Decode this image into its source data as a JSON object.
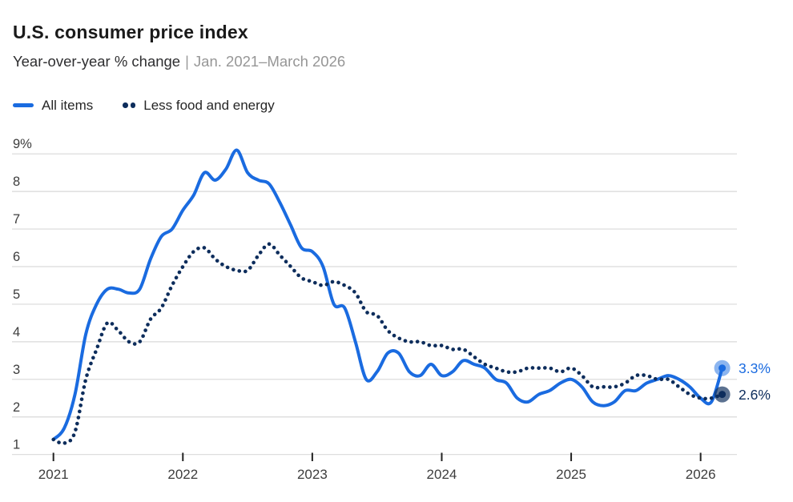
{
  "header": {
    "title": "U.S. consumer price index",
    "subtitle_measure": "Year-over-year % change",
    "subtitle_divider": "|",
    "subtitle_range": "Jan. 2021–March 2026"
  },
  "legend": [
    {
      "label": "All items",
      "style": "solid-line",
      "color": "#1a6be0"
    },
    {
      "label": "Less food and energy",
      "style": "dotted-line",
      "color": "#0d2d5c"
    }
  ],
  "colors": {
    "accent_blue": "#1a6be0",
    "navy": "#0d2d5c",
    "gridline": "#d9d9d9",
    "axis_text": "#3d3d3d",
    "tick": "#222222",
    "title_text": "#1a1a1a",
    "subtitle_text": "#2e2e30",
    "subtitle_muted": "#969696"
  },
  "chart_data": {
    "type": "line",
    "title": "U.S. consumer price index",
    "ylabel": "Year-over-year % change",
    "x_start": "2021-01",
    "x_end": "2026-03",
    "x_interval": "monthly",
    "x_tick_labels": [
      "2021",
      "2022",
      "2023",
      "2024",
      "2025",
      "2026"
    ],
    "y_ticks": [
      {
        "value": 1,
        "label": "1"
      },
      {
        "value": 2,
        "label": "2"
      },
      {
        "value": 3,
        "label": "3"
      },
      {
        "value": 4,
        "label": "4"
      },
      {
        "value": 5,
        "label": "5"
      },
      {
        "value": 6,
        "label": "6"
      },
      {
        "value": 7,
        "label": "7"
      },
      {
        "value": 8,
        "label": "8"
      },
      {
        "value": 9,
        "label": "9%"
      }
    ],
    "ylim": [
      1,
      9.2
    ],
    "grid": "horizontal",
    "legend_position": "top-left",
    "series": [
      {
        "name": "All items",
        "style": "solid",
        "color": "#1a6be0",
        "end_label": "3.3%",
        "end_value": 3.3,
        "values": [
          1.4,
          1.7,
          2.6,
          4.2,
          5.0,
          5.4,
          5.4,
          5.3,
          5.4,
          6.2,
          6.8,
          7.0,
          7.5,
          7.9,
          8.5,
          8.3,
          8.6,
          9.1,
          8.5,
          8.3,
          8.2,
          7.7,
          7.1,
          6.5,
          6.4,
          6.0,
          5.0,
          4.9,
          4.0,
          3.0,
          3.2,
          3.7,
          3.7,
          3.2,
          3.1,
          3.4,
          3.1,
          3.2,
          3.5,
          3.4,
          3.3,
          3.0,
          2.9,
          2.5,
          2.4,
          2.6,
          2.7,
          2.9,
          3.0,
          2.8,
          2.4,
          2.3,
          2.4,
          2.7,
          2.7,
          2.9,
          3.0,
          3.1,
          3.0,
          2.8,
          2.5,
          2.4,
          3.3
        ]
      },
      {
        "name": "Less food and energy",
        "style": "dotted",
        "color": "#0d2d5c",
        "end_label": "2.6%",
        "end_value": 2.6,
        "values": [
          1.4,
          1.3,
          1.6,
          3.0,
          3.8,
          4.5,
          4.3,
          4.0,
          4.0,
          4.6,
          4.9,
          5.5,
          6.0,
          6.4,
          6.5,
          6.2,
          6.0,
          5.9,
          5.9,
          6.3,
          6.6,
          6.3,
          6.0,
          5.7,
          5.6,
          5.5,
          5.6,
          5.5,
          5.3,
          4.8,
          4.7,
          4.3,
          4.1,
          4.0,
          4.0,
          3.9,
          3.9,
          3.8,
          3.8,
          3.6,
          3.4,
          3.3,
          3.2,
          3.2,
          3.3,
          3.3,
          3.3,
          3.2,
          3.3,
          3.1,
          2.8,
          2.8,
          2.8,
          2.9,
          3.1,
          3.1,
          3.0,
          3.0,
          2.8,
          2.6,
          2.5,
          2.5,
          2.6
        ]
      }
    ]
  }
}
